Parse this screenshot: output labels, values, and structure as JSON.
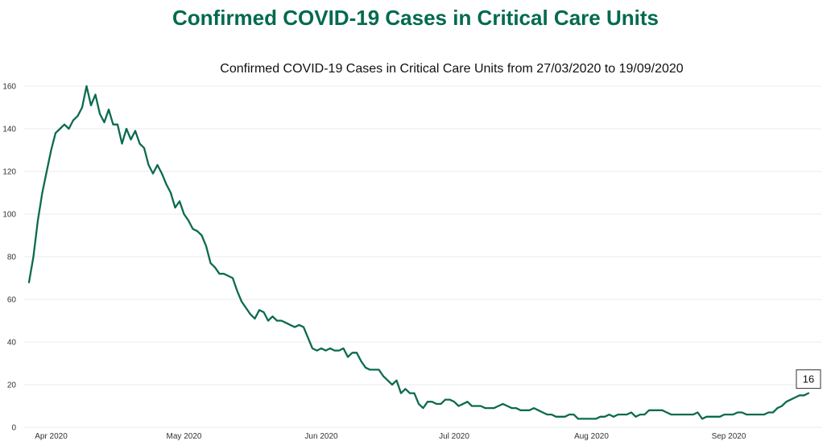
{
  "header": {
    "title": "Confirmed COVID-19 Cases in Critical Care Units"
  },
  "colors": {
    "heading": "#006a4e",
    "line": "#0b6a50",
    "grid": "#ebebeb",
    "axis_text": "#333333",
    "label_border": "#333333"
  },
  "chart_data": {
    "type": "line",
    "title": "Confirmed COVID-19 Cases in Critical Care Units from 27/03/2020 to 19/09/2020",
    "ylim": [
      0,
      160
    ],
    "xlim": [
      "2020-03-27",
      "2020-09-19"
    ],
    "grid": true,
    "y_ticks": [
      0,
      20,
      40,
      60,
      80,
      100,
      120,
      140,
      160
    ],
    "x_ticks": [
      "2020-04-01",
      "2020-05-01",
      "2020-06-01",
      "2020-07-01",
      "2020-08-01",
      "2020-09-01"
    ],
    "x_tick_labels": [
      "Apr 2020",
      "May 2020",
      "Jun 2020",
      "Jul 2020",
      "Aug 2020",
      "Sep 2020"
    ],
    "x": [
      "2020-03-27",
      "2020-03-28",
      "2020-03-29",
      "2020-03-30",
      "2020-03-31",
      "2020-04-01",
      "2020-04-02",
      "2020-04-03",
      "2020-04-04",
      "2020-04-05",
      "2020-04-06",
      "2020-04-07",
      "2020-04-08",
      "2020-04-09",
      "2020-04-10",
      "2020-04-11",
      "2020-04-12",
      "2020-04-13",
      "2020-04-14",
      "2020-04-15",
      "2020-04-16",
      "2020-04-17",
      "2020-04-18",
      "2020-04-19",
      "2020-04-20",
      "2020-04-21",
      "2020-04-22",
      "2020-04-23",
      "2020-04-24",
      "2020-04-25",
      "2020-04-26",
      "2020-04-27",
      "2020-04-28",
      "2020-04-29",
      "2020-04-30",
      "2020-05-01",
      "2020-05-02",
      "2020-05-03",
      "2020-05-04",
      "2020-05-05",
      "2020-05-06",
      "2020-05-07",
      "2020-05-08",
      "2020-05-09",
      "2020-05-10",
      "2020-05-11",
      "2020-05-12",
      "2020-05-13",
      "2020-05-14",
      "2020-05-15",
      "2020-05-16",
      "2020-05-17",
      "2020-05-18",
      "2020-05-19",
      "2020-05-20",
      "2020-05-21",
      "2020-05-22",
      "2020-05-23",
      "2020-05-24",
      "2020-05-25",
      "2020-05-26",
      "2020-05-27",
      "2020-05-28",
      "2020-05-29",
      "2020-05-30",
      "2020-05-31",
      "2020-06-01",
      "2020-06-02",
      "2020-06-03",
      "2020-06-04",
      "2020-06-05",
      "2020-06-06",
      "2020-06-07",
      "2020-06-08",
      "2020-06-09",
      "2020-06-10",
      "2020-06-11",
      "2020-06-12",
      "2020-06-13",
      "2020-06-14",
      "2020-06-15",
      "2020-06-16",
      "2020-06-17",
      "2020-06-18",
      "2020-06-19",
      "2020-06-20",
      "2020-06-21",
      "2020-06-22",
      "2020-06-23",
      "2020-06-24",
      "2020-06-25",
      "2020-06-26",
      "2020-06-27",
      "2020-06-28",
      "2020-06-29",
      "2020-06-30",
      "2020-07-01",
      "2020-07-02",
      "2020-07-03",
      "2020-07-04",
      "2020-07-05",
      "2020-07-06",
      "2020-07-07",
      "2020-07-08",
      "2020-07-09",
      "2020-07-10",
      "2020-07-11",
      "2020-07-12",
      "2020-07-13",
      "2020-07-14",
      "2020-07-15",
      "2020-07-16",
      "2020-07-17",
      "2020-07-18",
      "2020-07-19",
      "2020-07-20",
      "2020-07-21",
      "2020-07-22",
      "2020-07-23",
      "2020-07-24",
      "2020-07-25",
      "2020-07-26",
      "2020-07-27",
      "2020-07-28",
      "2020-07-29",
      "2020-07-30",
      "2020-07-31",
      "2020-08-01",
      "2020-08-02",
      "2020-08-03",
      "2020-08-04",
      "2020-08-05",
      "2020-08-06",
      "2020-08-07",
      "2020-08-08",
      "2020-08-09",
      "2020-08-10",
      "2020-08-11",
      "2020-08-12",
      "2020-08-13",
      "2020-08-14",
      "2020-08-15",
      "2020-08-16",
      "2020-08-17",
      "2020-08-18",
      "2020-08-19",
      "2020-08-20",
      "2020-08-21",
      "2020-08-22",
      "2020-08-23",
      "2020-08-24",
      "2020-08-25",
      "2020-08-26",
      "2020-08-27",
      "2020-08-28",
      "2020-08-29",
      "2020-08-30",
      "2020-08-31",
      "2020-09-01",
      "2020-09-02",
      "2020-09-03",
      "2020-09-04",
      "2020-09-05",
      "2020-09-06",
      "2020-09-07",
      "2020-09-08",
      "2020-09-09",
      "2020-09-10",
      "2020-09-11",
      "2020-09-12",
      "2020-09-13",
      "2020-09-14",
      "2020-09-15",
      "2020-09-16",
      "2020-09-17",
      "2020-09-18",
      "2020-09-19"
    ],
    "series": [
      {
        "values": [
          68,
          80,
          97,
          110,
          120,
          130,
          138,
          140,
          142,
          140,
          144,
          146,
          150,
          160,
          151,
          156,
          147,
          143,
          149,
          142,
          142,
          133,
          140,
          135,
          139,
          133,
          131,
          123,
          119,
          123,
          119,
          114,
          110,
          103,
          106,
          100,
          97,
          93,
          92,
          90,
          85,
          77,
          75,
          72,
          72,
          71,
          70,
          64,
          59,
          56,
          53,
          51,
          55,
          54,
          50,
          52,
          50,
          50,
          49,
          48,
          47,
          48,
          47,
          42,
          37,
          36,
          37,
          36,
          37,
          36,
          36,
          37,
          33,
          35,
          35,
          31,
          28,
          27,
          27,
          27,
          24,
          22,
          20,
          22,
          16,
          18,
          16,
          16,
          11,
          9,
          12,
          12,
          11,
          11,
          13,
          13,
          12,
          10,
          11,
          12,
          10,
          10,
          10,
          9,
          9,
          9,
          10,
          11,
          10,
          9,
          9,
          8,
          8,
          8,
          9,
          8,
          7,
          6,
          6,
          5,
          5,
          5,
          6,
          6,
          4,
          4,
          4,
          4,
          4,
          5,
          5,
          6,
          5,
          6,
          6,
          6,
          7,
          5,
          6,
          6,
          8,
          8,
          8,
          8,
          7,
          6,
          6,
          6,
          6,
          6,
          6,
          7,
          4,
          5,
          5,
          5,
          5,
          6,
          6,
          6,
          7,
          7,
          6,
          6,
          6,
          6,
          6,
          7,
          7,
          9,
          10,
          12,
          13,
          14,
          15,
          15,
          16
        ]
      }
    ],
    "annotations": [
      {
        "x": "2020-09-19",
        "y": 16,
        "text": "16"
      }
    ]
  }
}
